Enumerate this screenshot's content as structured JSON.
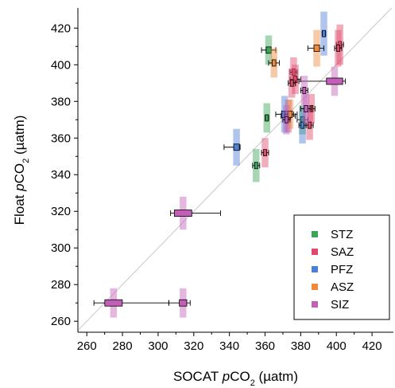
{
  "chart_data": {
    "type": "scatter",
    "xlabel": {
      "prefix": "SOCAT ",
      "var": "p",
      "mid": "CO",
      "sub": "2",
      "unit": " (µatm)"
    },
    "ylabel": {
      "prefix": "Float ",
      "var": "p",
      "mid": "CO",
      "sub": "2",
      "unit": " (µatm)"
    },
    "xlim": [
      255,
      432
    ],
    "ylim": [
      254,
      431
    ],
    "xticks": [
      260,
      280,
      300,
      320,
      340,
      360,
      380,
      400,
      420
    ],
    "yticks": [
      260,
      280,
      300,
      320,
      340,
      360,
      380,
      400,
      420
    ],
    "xtick_labels": [
      "260",
      "280",
      "300",
      "320",
      "340",
      "360",
      "380",
      "400",
      "420"
    ],
    "ytick_labels": [
      "260",
      "280",
      "300",
      "320",
      "340",
      "360",
      "380",
      "400",
      "420"
    ],
    "one_to_one_line": true,
    "grid": false,
    "legend_position": "lower-right",
    "series": [
      {
        "name": "STZ",
        "color": "#3aa655",
        "points": [
          {
            "x": 362,
            "y": 408,
            "xerr": [
              4,
              4
            ],
            "yerr": 8
          },
          {
            "x": 361,
            "y": 371,
            "xerr": [
              1,
              1
            ],
            "yerr": 8
          },
          {
            "x": 355,
            "y": 345,
            "xerr": [
              2,
              2
            ],
            "yerr": 9
          },
          {
            "x": 381,
            "y": 370,
            "xerr": [
              3,
              3
            ],
            "yerr": 8
          }
        ]
      },
      {
        "name": "SAZ",
        "color": "#e04a6a",
        "points": [
          {
            "x": 402,
            "y": 411,
            "xerr": [
              2,
              2
            ],
            "yerr": 11
          },
          {
            "x": 401,
            "y": 409,
            "xerr": [
              2,
              2
            ],
            "yerr": 10
          },
          {
            "x": 376,
            "y": 396,
            "xerr": [
              2,
              2
            ],
            "yerr": 8
          },
          {
            "x": 377,
            "y": 392,
            "xerr": [
              3,
              3
            ],
            "yerr": 8
          },
          {
            "x": 375,
            "y": 390,
            "xerr": [
              2,
              2
            ],
            "yerr": 8
          },
          {
            "x": 373,
            "y": 372,
            "xerr": [
              4,
              4
            ],
            "yerr": 9
          },
          {
            "x": 386,
            "y": 376,
            "xerr": [
              2,
              2
            ],
            "yerr": 8
          },
          {
            "x": 385,
            "y": 367,
            "xerr": [
              2,
              2
            ],
            "yerr": 8
          },
          {
            "x": 360,
            "y": 352,
            "xerr": [
              2,
              2
            ],
            "yerr": 8
          }
        ]
      },
      {
        "name": "PFZ",
        "color": "#4d7fd6",
        "points": [
          {
            "x": 393,
            "y": 417,
            "xerr": [
              1,
              1
            ],
            "yerr": 12
          },
          {
            "x": 371,
            "y": 373,
            "xerr": [
              5,
              5
            ],
            "yerr": 10
          },
          {
            "x": 381,
            "y": 367,
            "xerr": [
              2,
              2
            ],
            "yerr": 10
          },
          {
            "x": 344,
            "y": 355,
            "xerr": [
              7,
              2
            ],
            "yerr": 10
          }
        ]
      },
      {
        "name": "ASZ",
        "color": "#ee8a3a",
        "points": [
          {
            "x": 389,
            "y": 409,
            "xerr": [
              5,
              4
            ],
            "yerr": 10
          },
          {
            "x": 365,
            "y": 401,
            "xerr": [
              3,
              3
            ],
            "yerr": 8
          },
          {
            "x": 374,
            "y": 373,
            "xerr": [
              3,
              4
            ],
            "yerr": 8
          }
        ]
      },
      {
        "name": "SIZ",
        "color": "#c45fb8",
        "points": [
          {
            "x": 399,
            "y": 391,
            "xerr": [
              20,
              6
            ],
            "yerr": 8
          },
          {
            "x": 382,
            "y": 386,
            "xerr": [
              2,
              2
            ],
            "yerr": 8
          },
          {
            "x": 383,
            "y": 376,
            "xerr": [
              3,
              3
            ],
            "yerr": 8
          },
          {
            "x": 372,
            "y": 370,
            "xerr": [
              2,
              2
            ],
            "yerr": 8
          },
          {
            "x": 314,
            "y": 319,
            "xerr": [
              7,
              21
            ],
            "yerr": 9
          },
          {
            "x": 275,
            "y": 270,
            "xerr": [
              11,
              31
            ],
            "yerr": 8
          },
          {
            "x": 314,
            "y": 270,
            "xerr": [
              8,
              4
            ],
            "yerr": 8
          }
        ]
      }
    ]
  }
}
